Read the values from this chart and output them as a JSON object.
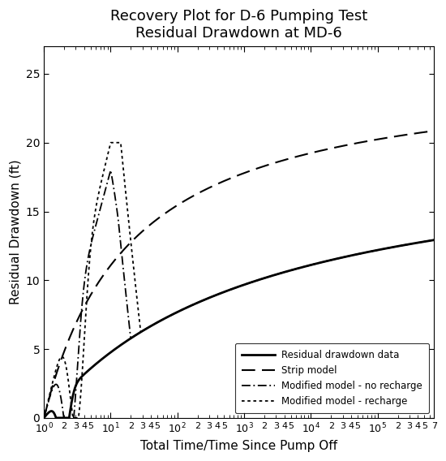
{
  "title": "Recovery Plot for D-6 Pumping Test\nResidual Drawdown at MD-6",
  "xlabel": "Total Time/Time Since Pump Off",
  "ylabel": "Residual Drawdown (ft)",
  "xlim": [
    1,
    700000
  ],
  "ylim": [
    0,
    27
  ],
  "yticks": [
    0,
    5,
    10,
    15,
    20,
    25
  ],
  "background_color": "#ffffff",
  "title_fontsize": 13,
  "axis_label_fontsize": 11,
  "legend_labels": [
    "Residual drawdown data",
    "Strip model",
    "Modified model - no recharge",
    "Modified model - recharge"
  ],
  "curve_solid_A": 20.0,
  "curve_solid_B": 3.2,
  "curve_strip_A": 25.5,
  "curve_strip_B": 1.3
}
